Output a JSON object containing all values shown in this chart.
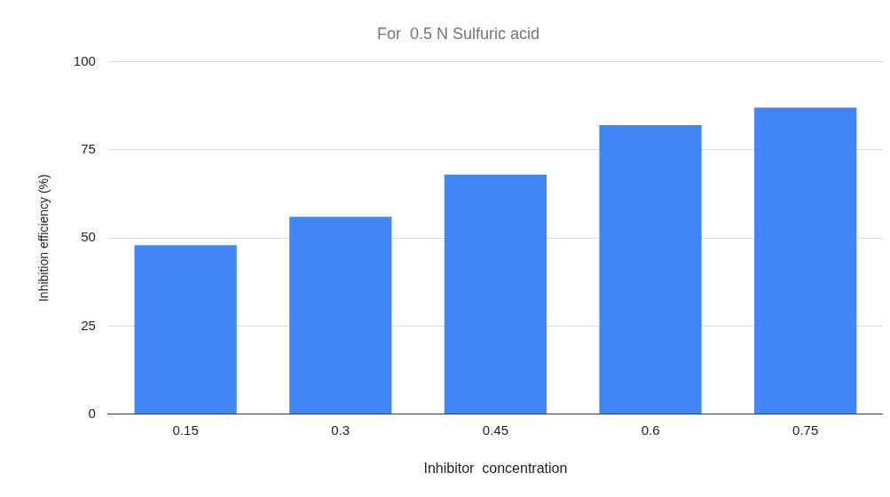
{
  "chart_data": {
    "type": "bar",
    "title": "For  0.5 N Sulfuric acid",
    "xlabel": "Inhibitor  concentration",
    "ylabel": "Inhibition efficiency (%)",
    "categories": [
      "0.15",
      "0.3",
      "0.45",
      "0.6",
      "0.75"
    ],
    "values": [
      48,
      56,
      68,
      82,
      87
    ],
    "color": "#4285f4",
    "ylim": [
      0,
      100
    ],
    "yticks": [
      0,
      25,
      50,
      75,
      100
    ],
    "grid": "y",
    "legend": false
  }
}
